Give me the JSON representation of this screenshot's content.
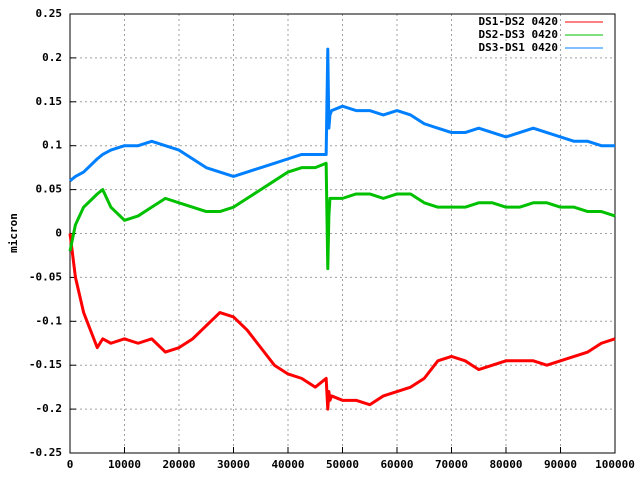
{
  "chart_data": {
    "type": "line",
    "y_label": "micron",
    "x": [
      0,
      1000,
      2500,
      5000,
      6000,
      7500,
      10000,
      12500,
      15000,
      17500,
      20000,
      22500,
      25000,
      27500,
      30000,
      32500,
      35000,
      37500,
      40000,
      42500,
      45000,
      47000,
      47300,
      47500,
      47700,
      48000,
      50000,
      52500,
      55000,
      57500,
      60000,
      62500,
      65000,
      67500,
      70000,
      72500,
      75000,
      77500,
      80000,
      82500,
      85000,
      87500,
      90000,
      92500,
      95000,
      97500,
      100000
    ],
    "series": [
      {
        "name": "DS1-DS2 0420",
        "color": "#ff0000",
        "values": [
          0,
          -0.05,
          -0.09,
          -0.13,
          -0.12,
          -0.125,
          -0.12,
          -0.125,
          -0.12,
          -0.135,
          -0.13,
          -0.12,
          -0.105,
          -0.09,
          -0.095,
          -0.11,
          -0.13,
          -0.15,
          -0.16,
          -0.165,
          -0.175,
          -0.165,
          -0.2,
          -0.18,
          -0.19,
          -0.185,
          -0.19,
          -0.19,
          -0.195,
          -0.185,
          -0.18,
          -0.175,
          -0.165,
          -0.145,
          -0.14,
          -0.145,
          -0.155,
          -0.15,
          -0.145,
          -0.145,
          -0.145,
          -0.15,
          -0.145,
          -0.14,
          -0.135,
          -0.125,
          -0.12
        ]
      },
      {
        "name": "DS2-DS3 0420",
        "color": "#00c000",
        "values": [
          -0.02,
          0.01,
          0.03,
          0.045,
          0.05,
          0.03,
          0.015,
          0.02,
          0.03,
          0.04,
          0.035,
          0.03,
          0.025,
          0.025,
          0.03,
          0.04,
          0.05,
          0.06,
          0.07,
          0.075,
          0.075,
          0.08,
          -0.04,
          0.02,
          0.04,
          0.04,
          0.04,
          0.045,
          0.045,
          0.04,
          0.045,
          0.045,
          0.035,
          0.03,
          0.03,
          0.03,
          0.035,
          0.035,
          0.03,
          0.03,
          0.035,
          0.035,
          0.03,
          0.03,
          0.025,
          0.025,
          0.02
        ]
      },
      {
        "name": "DS3-DS1 0420",
        "color": "#0080ff",
        "values": [
          0.06,
          0.065,
          0.07,
          0.085,
          0.09,
          0.095,
          0.1,
          0.1,
          0.105,
          0.1,
          0.095,
          0.085,
          0.075,
          0.07,
          0.065,
          0.07,
          0.075,
          0.08,
          0.085,
          0.09,
          0.09,
          0.09,
          0.21,
          0.12,
          0.135,
          0.14,
          0.145,
          0.14,
          0.14,
          0.135,
          0.14,
          0.135,
          0.125,
          0.12,
          0.115,
          0.115,
          0.12,
          0.115,
          0.11,
          0.115,
          0.12,
          0.115,
          0.11,
          0.105,
          0.105,
          0.1,
          0.1
        ]
      }
    ],
    "xlim": [
      0,
      100000
    ],
    "xticks": [
      0,
      10000,
      20000,
      30000,
      40000,
      50000,
      60000,
      70000,
      80000,
      90000,
      100000
    ],
    "ylim": [
      -0.25,
      0.25
    ],
    "yticks": [
      -0.25,
      -0.2,
      -0.15,
      -0.1,
      -0.05,
      0,
      0.05,
      0.1,
      0.15,
      0.2,
      0.25
    ],
    "grid": true,
    "legend": "top-right"
  }
}
